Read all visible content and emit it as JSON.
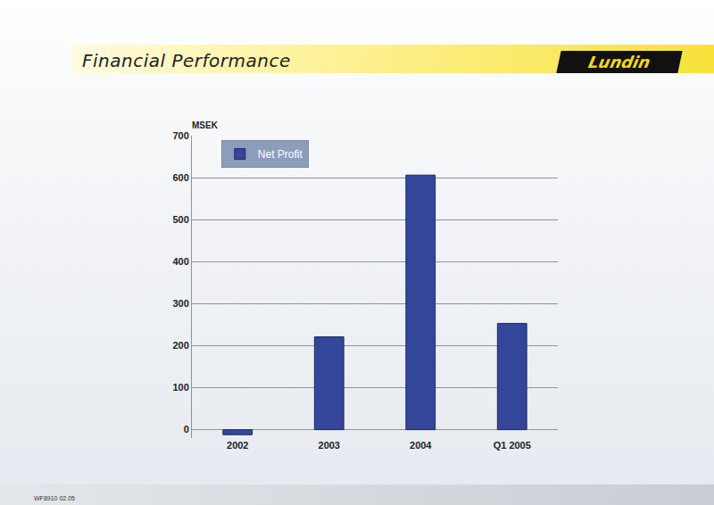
{
  "header": {
    "title": "Financial Performance",
    "logo": "Lundin"
  },
  "footer": "WF8910 02.05",
  "chart_data": {
    "type": "bar",
    "ylabel": "MSEK",
    "categories": [
      "2002",
      "2003",
      "2004",
      "Q1 2005"
    ],
    "series": [
      {
        "name": "Net Profit",
        "color": "#34469a",
        "values": [
          -12,
          221,
          606,
          253
        ]
      }
    ],
    "ylim": [
      -20,
      700
    ],
    "yticks": [
      0,
      100,
      200,
      300,
      400,
      500,
      600,
      700
    ],
    "grid": true,
    "legend": "top left"
  }
}
